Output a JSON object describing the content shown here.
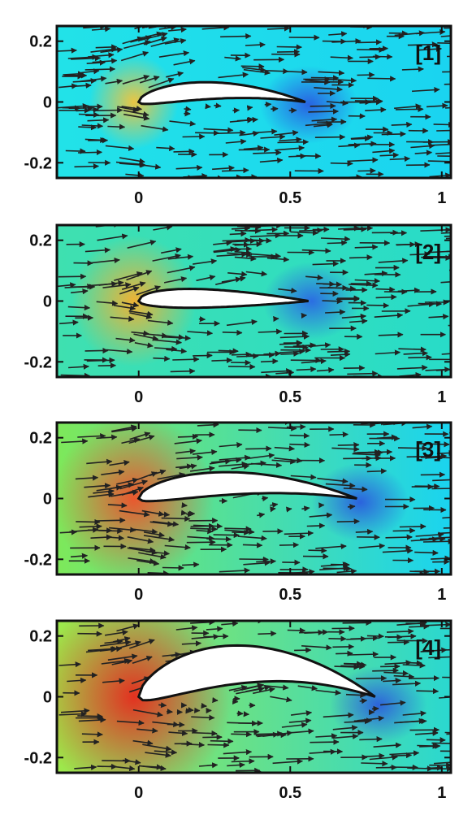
{
  "chart_data": [
    {
      "type": "vector-field",
      "panel_label": "[1]",
      "xlim": [
        -0.27,
        1.03
      ],
      "ylim": [
        -0.25,
        0.25
      ],
      "xticks": [
        0,
        0.5,
        1
      ],
      "xtick_labels": [
        "0",
        "0.5",
        "1"
      ],
      "yticks": [
        0.2,
        0,
        -0.2
      ],
      "ytick_labels": [
        "0.2",
        "0",
        "-0.2"
      ],
      "airfoil": {
        "chord": 0.55,
        "max_thickness": 0.075,
        "camber": 0.03
      },
      "colors": {
        "background": "#22e2e8",
        "leading_edge": "#f5c43a",
        "trailing_edge": "#2a4ee0",
        "far_field": "#1ad4f0"
      }
    },
    {
      "type": "vector-field",
      "panel_label": "[2]",
      "xlim": [
        -0.27,
        1.03
      ],
      "ylim": [
        -0.25,
        0.25
      ],
      "xticks": [
        0,
        0.5,
        1
      ],
      "xtick_labels": [
        "0",
        "0.5",
        "1"
      ],
      "yticks": [
        0.2,
        0,
        -0.2
      ],
      "ytick_labels": [
        "0.2",
        "0",
        "-0.2"
      ],
      "airfoil": {
        "chord": 0.56,
        "max_thickness": 0.08,
        "camber": 0.0
      },
      "colors": {
        "background": "#3fe0b0",
        "leading_edge": "#f7b02e",
        "trailing_edge": "#2a5ae8",
        "far_field": "#28dcc8"
      }
    },
    {
      "type": "vector-field",
      "panel_label": "[3]",
      "xlim": [
        -0.27,
        1.03
      ],
      "ylim": [
        -0.25,
        0.25
      ],
      "xticks": [
        0,
        0.5,
        1
      ],
      "xtick_labels": [
        "0",
        "0.5",
        "1"
      ],
      "yticks": [
        0.2,
        0,
        -0.2
      ],
      "ytick_labels": [
        "0.2",
        "0",
        "-0.2"
      ],
      "airfoil": {
        "chord": 0.72,
        "max_thickness": 0.1,
        "camber": 0.04
      },
      "colors": {
        "background": "#7ee85a",
        "leading_edge": "#f0502a",
        "trailing_edge": "#2a4ee0",
        "far_field": "#1ad4f0"
      }
    },
    {
      "type": "vector-field",
      "panel_label": "[4]",
      "xlim": [
        -0.27,
        1.03
      ],
      "ylim": [
        -0.25,
        0.25
      ],
      "xticks": [
        0,
        0.5,
        1
      ],
      "xtick_labels": [
        "0",
        "0.5",
        "1"
      ],
      "yticks": [
        0.2,
        0,
        -0.2
      ],
      "ytick_labels": [
        "0.2",
        "0",
        "-0.2"
      ],
      "airfoil": {
        "chord": 0.78,
        "max_thickness": 0.17,
        "camber": 0.09
      },
      "colors": {
        "background": "#9ee84a",
        "leading_edge": "#e8281c",
        "trailing_edge": "#2a4ee0",
        "far_field": "#2ad8d0"
      }
    }
  ]
}
